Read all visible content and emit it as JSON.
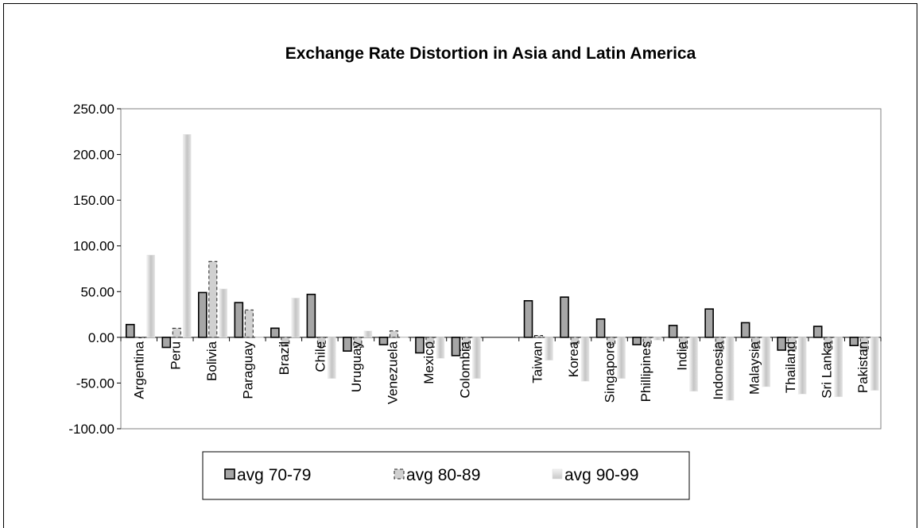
{
  "chart_data": {
    "type": "bar",
    "title": "Exchange Rate Distortion in Asia and Latin America",
    "xlabel": "",
    "ylabel": "",
    "ylim": [
      -100,
      250
    ],
    "y_ticks": [
      "250.00",
      "200.00",
      "150.00",
      "100.00",
      "50.00",
      "0.00",
      "-50.00",
      "-100.00"
    ],
    "grid": false,
    "legend_position": "bottom",
    "categories": [
      "Argentina",
      "Peru",
      "Bolivia",
      "Paraguay",
      "Brazil",
      "Chile",
      "Uruguay",
      "Venezuela",
      "Mexico",
      "Colombia",
      "",
      "Taiwan",
      "Korea",
      "Singapore",
      "Phillipines",
      "India",
      "Indonesia",
      "Malaysia",
      "Thailand",
      "Sri Lanka",
      "Pakistan"
    ],
    "series": [
      {
        "name": "avg 70-79",
        "color": "#a6a6a6",
        "values": [
          14,
          -11,
          49,
          38,
          10,
          47,
          -15,
          -8,
          -17,
          -20,
          null,
          40,
          44,
          20,
          -8,
          13,
          31,
          16,
          -14,
          12,
          -9
        ]
      },
      {
        "name": "avg 80-89",
        "color": "#d0d0d0",
        "values": [
          0,
          10,
          83,
          30,
          -8,
          -10,
          -11,
          7,
          -11,
          -14,
          null,
          2,
          -8,
          -8,
          -9,
          -12,
          -15,
          -12,
          -15,
          -14,
          -15
        ]
      },
      {
        "name": "avg 90-99",
        "color": "#cccccc",
        "values": [
          90,
          222,
          53,
          0,
          43,
          -45,
          7,
          0,
          -23,
          -45,
          null,
          -25,
          -48,
          -45,
          -3,
          -59,
          -69,
          -54,
          -62,
          -65,
          -58
        ]
      }
    ]
  }
}
